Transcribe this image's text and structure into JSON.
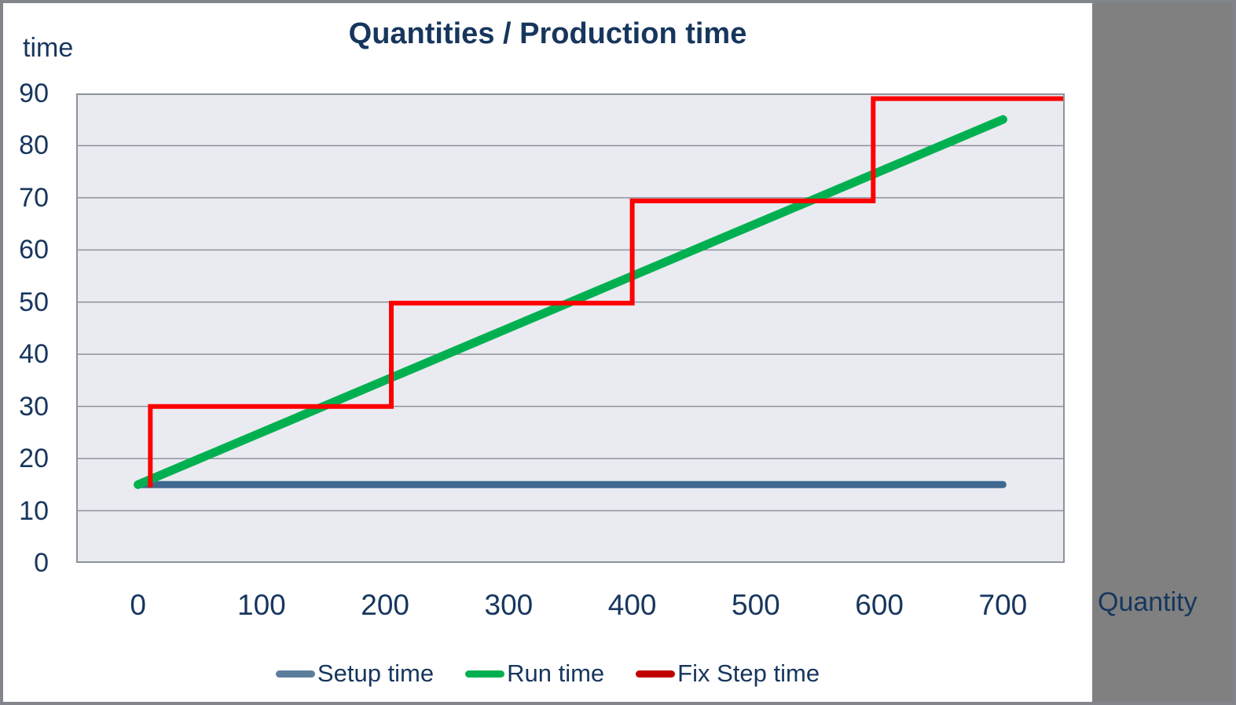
{
  "frame": {
    "border_color": "#83858D",
    "background": "#FFFFFF",
    "side_panel_color": "#808080"
  },
  "title": "Quantities / Production time",
  "y_axis_title": "time",
  "x_axis_title": "Quantity",
  "text_color": "#17365D",
  "chart_data": {
    "type": "line",
    "title": "Quantities / Production time",
    "xlabel": "Quantity",
    "ylabel": "time",
    "xlim": [
      -50,
      750
    ],
    "ylim": [
      0,
      90
    ],
    "x_ticks": [
      0,
      100,
      200,
      300,
      400,
      500,
      600,
      700
    ],
    "y_ticks": [
      0,
      10,
      20,
      30,
      40,
      50,
      60,
      70,
      80,
      90
    ],
    "grid": "horizontal",
    "plot_bg": "#E9EBF1",
    "grid_color": "#8E929B",
    "legend_position": "bottom",
    "series": [
      {
        "name": "Setup time",
        "color": "#40688F",
        "legend_color": "#5B7E9D",
        "width": 9,
        "linecap": "round",
        "points": [
          [
            0,
            15
          ],
          [
            700,
            15
          ]
        ]
      },
      {
        "name": "Run time",
        "color": "#00B050",
        "legend_color": "#00B050",
        "width": 11,
        "linecap": "round",
        "points": [
          [
            0,
            15
          ],
          [
            700,
            85
          ]
        ]
      },
      {
        "name": "Fix Step time",
        "color": "#FF0000",
        "legend_color": "#C00000",
        "width": 6,
        "linecap": "butt",
        "points": [
          [
            10,
            14.5
          ],
          [
            10,
            30
          ],
          [
            205,
            30
          ],
          [
            205,
            49.8
          ],
          [
            400,
            49.8
          ],
          [
            400,
            69.4
          ],
          [
            595,
            69.4
          ],
          [
            595,
            89
          ],
          [
            750,
            89
          ]
        ]
      }
    ]
  }
}
